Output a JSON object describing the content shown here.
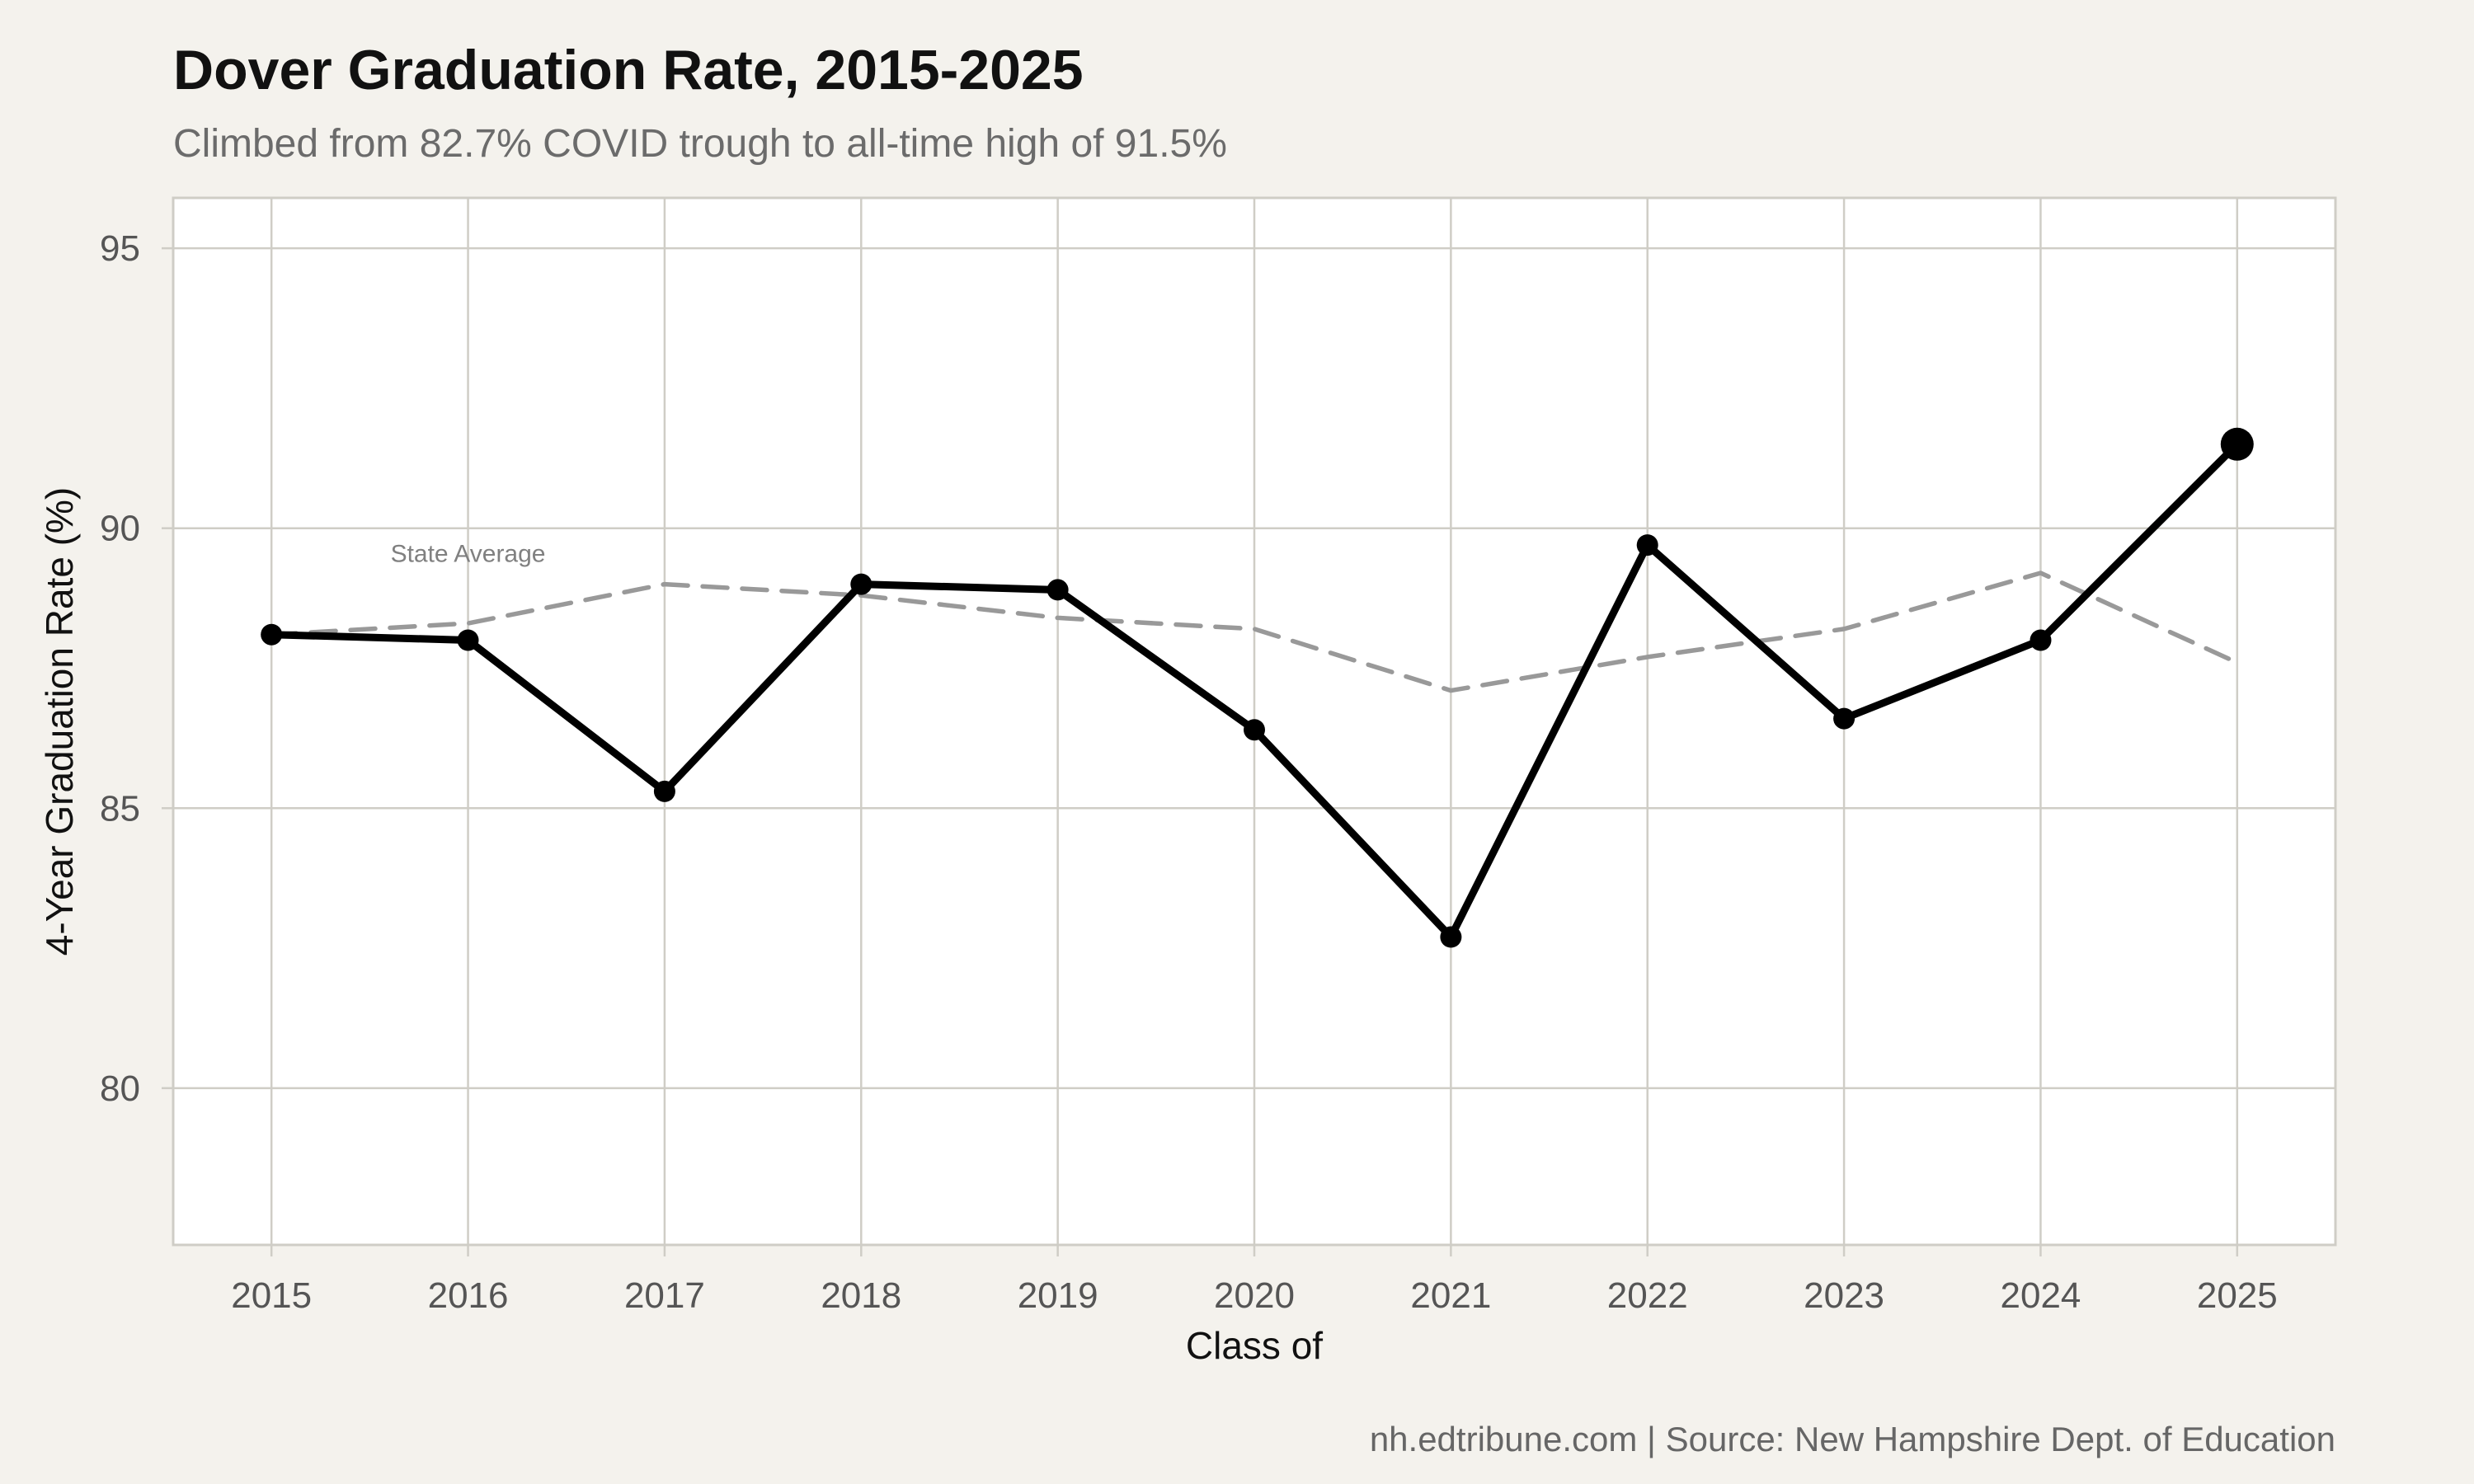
{
  "chart_data": {
    "type": "line",
    "title": "Dover Graduation Rate, 2015-2025",
    "subtitle": "Climbed from 82.7% COVID trough to all-time high of 91.5%",
    "xlabel": "Class of",
    "ylabel": "4-Year Graduation Rate (%)",
    "caption": "nh.edtribune.com | Source: New Hampshire Dept. of Education",
    "x": [
      2015,
      2016,
      2017,
      2018,
      2019,
      2020,
      2021,
      2022,
      2023,
      2024,
      2025
    ],
    "x_tick_labels": [
      "2015",
      "2016",
      "2017",
      "2018",
      "2019",
      "2020",
      "2021",
      "2022",
      "2023",
      "2024",
      "2025"
    ],
    "y_ticks": [
      80,
      85,
      90,
      95
    ],
    "y_tick_labels": [
      "80",
      "85",
      "90",
      "95"
    ],
    "xlim": [
      2014.5,
      2025.5
    ],
    "ylim": [
      77.2,
      95.9
    ],
    "grid": true,
    "series": [
      {
        "key": "dover",
        "values": [
          88.1,
          88.0,
          85.3,
          89.0,
          88.9,
          86.4,
          82.7,
          89.7,
          86.6,
          88.0,
          91.5
        ],
        "color": "#000000",
        "style": "solid",
        "markers": true,
        "highlight_last": true
      },
      {
        "key": "state",
        "values": [
          88.1,
          88.3,
          89.0,
          88.8,
          88.4,
          88.2,
          87.1,
          87.7,
          88.2,
          89.2,
          87.6
        ],
        "color": "#999999",
        "style": "dashed",
        "markers": false
      }
    ],
    "annotations": [
      {
        "text": "State Average",
        "x": 2016.0,
        "y": 89.4
      }
    ],
    "colors": {
      "background": "#f4f2ed",
      "panel": "#ffffff",
      "grid": "#cfcdc6"
    }
  }
}
